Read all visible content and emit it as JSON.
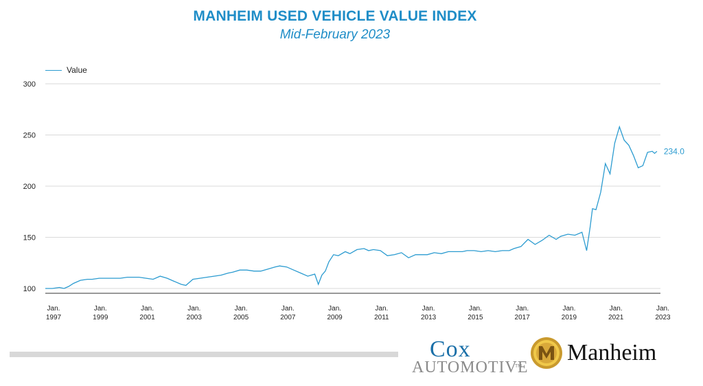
{
  "header": {
    "title": "MANHEIM USED VEHICLE VALUE INDEX",
    "subtitle": "Mid-February 2023"
  },
  "colors": {
    "accent": "#1f8dc7",
    "line": "#2b9bd0",
    "grid": "#d9d9d9"
  },
  "logos": {
    "cox_top": "Cox",
    "cox_bottom": "AUTOMOTIVE",
    "cox_tm": "TM",
    "manheim": "Manheim",
    "manheim_icon": "manheim-m-badge-icon"
  },
  "chart_data": {
    "type": "line",
    "title": "MANHEIM USED VEHICLE VALUE INDEX",
    "subtitle": "Mid-February 2023",
    "xlabel": "",
    "ylabel": "",
    "ylim": [
      100,
      300
    ],
    "yticks": [
      100,
      150,
      200,
      250,
      300
    ],
    "xlim": [
      1997.0,
      2023.25
    ],
    "grid": true,
    "legend": {
      "position": "top-left",
      "entries": [
        "Value"
      ]
    },
    "xticks": [
      {
        "year": 1997,
        "label1": "Jan.",
        "label2": "1997"
      },
      {
        "year": 1999,
        "label1": "Jan.",
        "label2": "1999"
      },
      {
        "year": 2001,
        "label1": "Jan.",
        "label2": "2001"
      },
      {
        "year": 2003,
        "label1": "Jan.",
        "label2": "2003"
      },
      {
        "year": 2005,
        "label1": "Jan.",
        "label2": "2005"
      },
      {
        "year": 2007,
        "label1": "Jan.",
        "label2": "2007"
      },
      {
        "year": 2009,
        "label1": "Jan.",
        "label2": "2009"
      },
      {
        "year": 2011,
        "label1": "Jan.",
        "label2": "2011"
      },
      {
        "year": 2013,
        "label1": "Jan.",
        "label2": "2013"
      },
      {
        "year": 2015,
        "label1": "Jan.",
        "label2": "2015"
      },
      {
        "year": 2017,
        "label1": "Jan.",
        "label2": "2017"
      },
      {
        "year": 2019,
        "label1": "Jan.",
        "label2": "2019"
      },
      {
        "year": 2021,
        "label1": "Jan.",
        "label2": "2021"
      },
      {
        "year": 2023,
        "label1": "Jan.",
        "label2": "2023"
      }
    ],
    "end_label": "234.0",
    "series": [
      {
        "name": "Value",
        "x": [
          1997.0,
          1997.3,
          1997.6,
          1997.8,
          1998.0,
          1998.2,
          1998.5,
          1998.8,
          1999.0,
          1999.3,
          1999.6,
          1999.9,
          2000.2,
          2000.5,
          2000.8,
          2001.0,
          2001.3,
          2001.6,
          2001.9,
          2002.2,
          2002.5,
          2002.8,
          2003.0,
          2003.3,
          2003.6,
          2003.9,
          2004.2,
          2004.5,
          2004.8,
          2005.0,
          2005.3,
          2005.6,
          2005.9,
          2006.2,
          2006.5,
          2006.8,
          2007.0,
          2007.3,
          2007.6,
          2007.9,
          2008.2,
          2008.5,
          2008.65,
          2008.8,
          2008.95,
          2009.1,
          2009.3,
          2009.5,
          2009.8,
          2010.0,
          2010.3,
          2010.6,
          2010.8,
          2011.0,
          2011.3,
          2011.6,
          2011.9,
          2012.2,
          2012.5,
          2012.8,
          2013.0,
          2013.3,
          2013.6,
          2013.9,
          2014.2,
          2014.5,
          2014.8,
          2015.0,
          2015.3,
          2015.6,
          2015.9,
          2016.2,
          2016.5,
          2016.8,
          2017.0,
          2017.3,
          2017.6,
          2017.9,
          2018.2,
          2018.5,
          2018.8,
          2019.0,
          2019.3,
          2019.6,
          2019.9,
          2020.1,
          2020.25,
          2020.35,
          2020.5,
          2020.7,
          2020.9,
          2021.1,
          2021.3,
          2021.5,
          2021.7,
          2021.9,
          2022.1,
          2022.3,
          2022.5,
          2022.7,
          2022.9,
          2023.0,
          2023.1
        ],
        "values": [
          100,
          100,
          101,
          100,
          102,
          105,
          108,
          109,
          109,
          110,
          110,
          110,
          110,
          111,
          111,
          111,
          110,
          109,
          112,
          110,
          107,
          104,
          103,
          109,
          110,
          111,
          112,
          113,
          115,
          116,
          118,
          118,
          117,
          117,
          119,
          121,
          122,
          121,
          118,
          115,
          112,
          114,
          104,
          113,
          117,
          126,
          133,
          132,
          136,
          134,
          138,
          139,
          137,
          138,
          137,
          132,
          133,
          135,
          130,
          133,
          133,
          133,
          135,
          134,
          136,
          136,
          136,
          137,
          137,
          136,
          137,
          136,
          137,
          137,
          139,
          141,
          148,
          143,
          147,
          152,
          148,
          151,
          153,
          152,
          155,
          137,
          160,
          178,
          177,
          194,
          222,
          212,
          242,
          258,
          245,
          240,
          230,
          218,
          220,
          233,
          234,
          232,
          234
        ]
      }
    ]
  }
}
